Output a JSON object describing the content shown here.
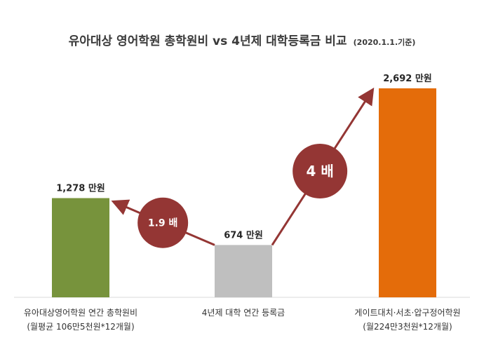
{
  "title": "유아대상 영어학원 총학원비 vs 4년제 대학등록금 비교",
  "subtitle": "(2020.1.1.기준)",
  "chart_data": {
    "type": "bar",
    "categories": [
      "유아대상영어학원 연간 총학원비",
      "4년제 대학 연간 등록금",
      "게이트대치·서초·압구정어학원"
    ],
    "category_notes": [
      "(월평균 106만5천원*12개월)",
      "",
      "(월224만3천원*12개월)"
    ],
    "values": [
      1278,
      674,
      2692
    ],
    "value_labels": [
      "1,278 만원",
      "674 만원",
      "2,692 만원"
    ],
    "unit": "만원",
    "colors": [
      "#77933c",
      "#bfbfbf",
      "#e46c0a"
    ],
    "ylim": [
      0,
      2800
    ],
    "grid": false,
    "legend": "none",
    "annotations": [
      {
        "text": "1.9 배",
        "from_category": 1,
        "to_category": 0
      },
      {
        "text": "4 배",
        "from_category": 1,
        "to_category": 2
      }
    ],
    "annotation_color": "#943634"
  }
}
